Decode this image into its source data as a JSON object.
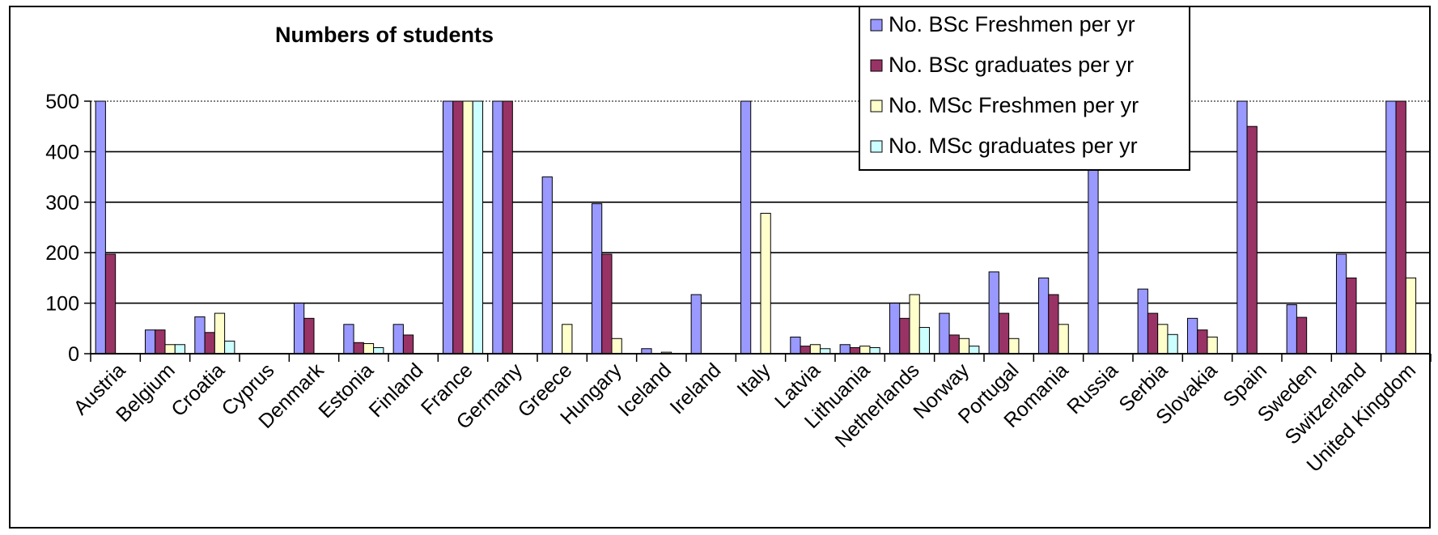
{
  "chart_data": {
    "type": "bar",
    "title": "Numbers of students",
    "xlabel": "",
    "ylabel": "",
    "ylim": [
      0,
      500
    ],
    "yticks": [
      "0",
      "100",
      "200",
      "300",
      "400",
      "500"
    ],
    "grid": "horizontal",
    "legend_position": "top-right",
    "categories": [
      "Austria",
      "Belgium",
      "Croatia",
      "Cyprus",
      "Denmark",
      "Estonia",
      "Finland",
      "France",
      "Germany",
      "Greece",
      "Hungary",
      "Iceland",
      "Ireland",
      "Italy",
      "Latvia",
      "Lithuania",
      "Netherlands",
      "Norway",
      "Portugal",
      "Romania",
      "Russia",
      "Serbia",
      "Slovakia",
      "Spain",
      "Sweden",
      "Switzerland",
      "United Kingdom"
    ],
    "series": [
      {
        "name": "No. BSc Freshmen per yr",
        "color": "#9999ff",
        "values": [
          500,
          47,
          73,
          0,
          100,
          58,
          58,
          500,
          500,
          350,
          297,
          10,
          117,
          500,
          33,
          18,
          100,
          80,
          162,
          150,
          400,
          128,
          70,
          500,
          97,
          197,
          500
        ]
      },
      {
        "name": "No. BSc graduates per yr",
        "color": "#993366",
        "values": [
          197,
          47,
          42,
          0,
          70,
          22,
          37,
          500,
          500,
          0,
          197,
          0,
          0,
          0,
          15,
          12,
          70,
          37,
          80,
          117,
          0,
          80,
          47,
          450,
          72,
          150,
          500
        ]
      },
      {
        "name": "No. MSc Freshmen per yr",
        "color": "#ffffcc",
        "values": [
          0,
          18,
          80,
          0,
          0,
          20,
          0,
          500,
          0,
          58,
          30,
          3,
          0,
          278,
          18,
          15,
          117,
          30,
          30,
          58,
          0,
          58,
          33,
          0,
          0,
          0,
          150
        ]
      },
      {
        "name": "No. MSc graduates per yr",
        "color": "#ccffff",
        "values": [
          0,
          18,
          25,
          0,
          0,
          12,
          0,
          500,
          0,
          0,
          0,
          0,
          0,
          0,
          10,
          12,
          52,
          15,
          0,
          0,
          0,
          38,
          0,
          0,
          0,
          0,
          0
        ]
      }
    ]
  }
}
